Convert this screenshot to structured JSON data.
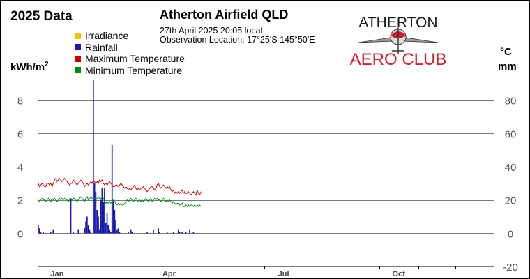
{
  "header": {
    "year_title": "2025 Data",
    "station_title": "Atherton Airfield QLD",
    "obs_datetime": "27th April 2025  20:05 local",
    "obs_location": "Observation Location: 17°25'S 145°50'E"
  },
  "logo": {
    "line1": "ATHERTON",
    "line2": "AERO CLUB",
    "colors": {
      "primary": "#1a1a1a",
      "accent": "#cc1f2b"
    }
  },
  "axis_labels": {
    "left_base": "kWh/m",
    "left_sup": "2",
    "right_line1": "°C",
    "right_line2": "mm"
  },
  "colors": {
    "irradiance": "#f2c200",
    "rainfall": "#1818b0",
    "max_temp": "#cc0000",
    "min_temp": "#008a1a",
    "grid": "#7a7a7a",
    "axis": "#000000"
  },
  "chart_data": {
    "type": "bar",
    "legend": [
      "Irradiance",
      "Rainfall",
      "Maximum Temperature",
      "Minimum Temperature"
    ],
    "legend_position": "top-left",
    "grid": true,
    "x": {
      "label": "",
      "range": [
        "2025-01-01",
        "2025-12-31"
      ],
      "tick_labels": [
        "Jan",
        "Apr",
        "Jul",
        "Oct"
      ]
    },
    "y_left": {
      "label": "kWh/m2",
      "range": [
        0,
        10
      ],
      "ticks": [
        0,
        2,
        4,
        6,
        8
      ]
    },
    "y_right": {
      "label": "°C / mm",
      "range": [
        -20,
        100
      ],
      "ticks": [
        -20,
        0,
        20,
        40,
        60,
        80
      ]
    },
    "series": [
      {
        "name": "Rainfall",
        "unit": "mm",
        "axis": "right",
        "values": [
          5,
          3,
          1,
          0,
          1,
          0,
          0,
          0,
          0,
          0,
          1,
          0,
          2,
          0,
          0,
          0,
          0,
          0,
          0,
          0,
          0,
          0,
          0,
          0,
          0,
          0,
          21,
          0,
          1,
          0,
          0,
          0,
          2,
          0,
          0,
          0,
          0,
          3,
          7,
          10,
          5,
          2,
          1,
          0,
          92,
          30,
          25,
          14,
          10,
          2,
          20,
          27,
          19,
          27,
          6,
          12,
          5,
          2,
          1,
          53,
          20,
          14,
          8,
          2,
          3,
          1,
          0,
          0,
          0,
          0,
          0,
          0,
          1,
          0,
          2,
          1,
          0,
          0,
          0,
          0,
          0,
          0,
          0,
          0,
          0,
          0,
          0,
          1,
          0,
          0,
          0,
          0,
          2,
          0,
          0,
          0,
          3,
          1,
          0,
          0,
          0,
          0,
          0,
          1,
          0,
          0,
          0,
          0,
          1,
          0,
          0,
          0,
          2,
          1,
          0,
          1,
          0,
          0,
          1,
          0,
          0,
          2,
          0,
          0,
          1,
          0,
          0,
          0,
          0,
          0,
          0
        ]
      },
      {
        "name": "Maximum Temperature",
        "unit": "°C",
        "axis": "right",
        "values": [
          30,
          28,
          29,
          30,
          29,
          28,
          28,
          30,
          30,
          29,
          30,
          28,
          30,
          32,
          33,
          31,
          32,
          33,
          32,
          31,
          32,
          33,
          32,
          31,
          30,
          29,
          30,
          30,
          32,
          31,
          30,
          29,
          30,
          31,
          32,
          31,
          30,
          28,
          29,
          30,
          29,
          30,
          31,
          30,
          32,
          31,
          30,
          31,
          30,
          32,
          31,
          32,
          30,
          29,
          30,
          29,
          30,
          31,
          30,
          29,
          28,
          28,
          29,
          29,
          28,
          29,
          30,
          29,
          28,
          27,
          28,
          27,
          26,
          27,
          26,
          27,
          28,
          29,
          27,
          26,
          27,
          26,
          27,
          27,
          28,
          27,
          26,
          25,
          26,
          27,
          28,
          28,
          27,
          26,
          27,
          29,
          30,
          28,
          27,
          28,
          29,
          28,
          27,
          28,
          27,
          28,
          26,
          25,
          26,
          24,
          25,
          24,
          25,
          24,
          25,
          26,
          24,
          25,
          24,
          24,
          25,
          24,
          23,
          24,
          25,
          24,
          23,
          26,
          24,
          23,
          25
        ]
      },
      {
        "name": "Minimum Temperature",
        "unit": "°C",
        "axis": "right",
        "values": [
          20,
          19,
          20,
          21,
          20,
          20,
          19,
          20,
          21,
          20,
          19,
          21,
          20,
          21,
          20,
          19,
          20,
          21,
          20,
          21,
          20,
          21,
          20,
          20,
          19,
          20,
          21,
          20,
          21,
          21,
          20,
          19,
          20,
          21,
          22,
          21,
          20,
          19,
          21,
          22,
          20,
          21,
          22,
          21,
          20,
          21,
          20,
          21,
          22,
          21,
          21,
          20,
          21,
          19,
          18,
          19,
          18,
          19,
          18,
          19,
          20,
          19,
          18,
          17,
          18,
          17,
          18,
          17,
          17,
          18,
          19,
          20,
          19,
          20,
          21,
          20,
          19,
          20,
          21,
          20,
          19,
          20,
          19,
          20,
          19,
          20,
          21,
          20,
          19,
          20,
          21,
          19,
          20,
          21,
          20,
          21,
          20,
          20,
          19,
          20,
          21,
          20,
          19,
          20,
          19,
          20,
          19,
          18,
          19,
          18,
          17,
          18,
          18,
          17,
          17,
          18,
          16,
          16,
          17,
          16,
          17,
          16,
          17,
          17,
          16,
          17,
          16,
          17,
          16,
          17,
          16
        ]
      },
      {
        "name": "Irradiance",
        "unit": "kWh/m2",
        "axis": "left",
        "values": []
      }
    ]
  }
}
